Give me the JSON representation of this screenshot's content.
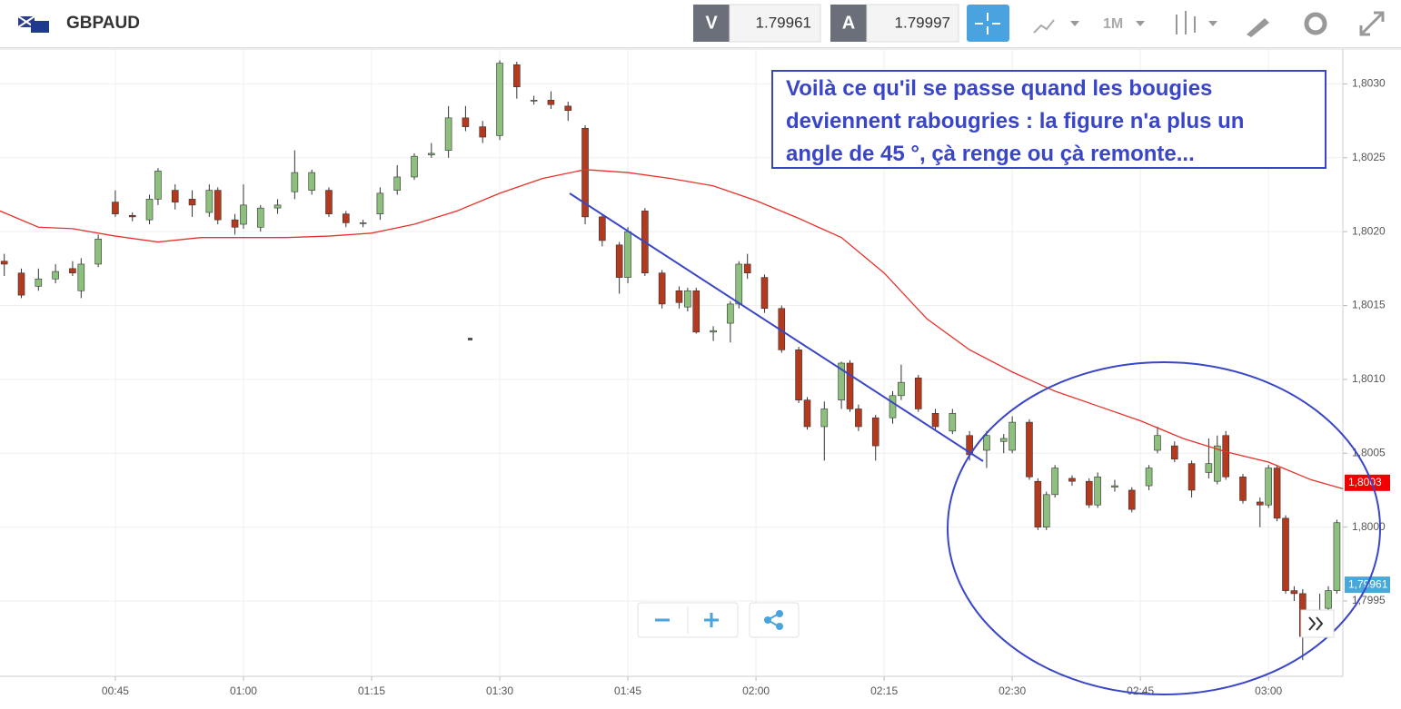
{
  "header": {
    "symbol": "GBPAUD",
    "bid_label": "V",
    "bid": "1.79961",
    "ask_label": "A",
    "ask": "1.79997",
    "timeframe": "1M"
  },
  "annotation": [
    "Voilà ce qu'il se passe quand les bougies",
    "deviennent rabougries : la figure n'a plus un",
    "angle de 45 °, çà renge ou çà remonte..."
  ],
  "chart_data": {
    "type": "candlestick",
    "xlim": [
      31.5,
      188.7
    ],
    "ylim": [
      1.79899,
      1.80323
    ],
    "xticks": [
      {
        "value": 45,
        "label": "00:45"
      },
      {
        "value": 60,
        "label": "01:00"
      },
      {
        "value": 75,
        "label": "01:15"
      },
      {
        "value": 90,
        "label": "01:30"
      },
      {
        "value": 105,
        "label": "01:45"
      },
      {
        "value": 120,
        "label": "02:00"
      },
      {
        "value": 135,
        "label": "02:15"
      },
      {
        "value": 150,
        "label": "02:30"
      },
      {
        "value": 165,
        "label": "02:45"
      },
      {
        "value": 180,
        "label": "03:00"
      }
    ],
    "yticks": [
      {
        "value": 1.7995,
        "label": "1,7995"
      },
      {
        "value": 1.8,
        "label": "1,8000"
      },
      {
        "value": 1.8005,
        "label": "1,8005"
      },
      {
        "value": 1.801,
        "label": "1,8010"
      },
      {
        "value": 1.8015,
        "label": "1,8015"
      },
      {
        "value": 1.802,
        "label": "1,8020"
      },
      {
        "value": 1.8025,
        "label": "1,8025"
      },
      {
        "value": 1.803,
        "label": "1,8030"
      }
    ],
    "grid": true,
    "up_color": "#8cc07c",
    "down_color": "#b33a1f",
    "x": [
      32,
      34,
      36,
      38,
      40,
      41,
      43,
      45,
      47,
      49,
      50,
      52,
      54,
      56,
      57,
      59,
      60,
      62,
      64,
      66,
      68,
      70,
      72,
      74,
      76,
      78,
      80,
      82,
      84,
      86,
      88,
      90,
      92,
      94,
      96,
      98,
      100,
      102,
      104,
      105,
      107,
      109,
      111,
      112,
      113,
      115,
      117,
      118,
      119,
      121,
      123,
      125,
      126,
      128,
      130,
      131,
      132,
      134,
      136,
      137,
      139,
      141,
      143,
      145,
      147,
      149,
      150,
      152,
      153,
      154,
      155,
      157,
      159,
      160,
      162,
      164,
      166,
      167,
      169,
      171,
      173,
      174,
      175,
      177,
      179,
      180,
      181,
      182,
      183,
      184,
      186,
      187,
      188
    ],
    "open": [
      1.8018,
      1.80172,
      1.80163,
      1.80168,
      1.80175,
      1.8016,
      1.80178,
      1.8022,
      1.80211,
      1.80208,
      1.80222,
      1.80228,
      1.80222,
      1.80213,
      1.80228,
      1.80208,
      1.80205,
      1.80203,
      1.80216,
      1.80227,
      1.80228,
      1.80228,
      1.80212,
      1.80206,
      1.80212,
      1.80228,
      1.80237,
      1.80252,
      1.80255,
      1.80277,
      1.80271,
      1.80265,
      1.80313,
      1.80289,
      1.80289,
      1.80285,
      1.8027,
      1.8021,
      1.80191,
      1.80169,
      1.80214,
      1.80172,
      1.8016,
      1.80149,
      1.8016,
      1.80132,
      1.80138,
      1.80151,
      1.80178,
      1.80169,
      1.80148,
      1.8012,
      1.80086,
      1.80068,
      1.80086,
      1.80111,
      1.8008,
      1.80074,
      1.80074,
      1.80089,
      1.80101,
      1.80077,
      1.80065,
      1.80062,
      1.80052,
      1.80058,
      1.80052,
      1.80071,
      1.80031,
      1.8,
      1.80022,
      1.80033,
      1.80031,
      1.80015,
      1.80027,
      1.80025,
      1.80028,
      1.80052,
      1.80055,
      1.80043,
      1.80037,
      1.80031,
      1.80062,
      1.80034,
      1.80017,
      1.80015,
      1.8004,
      1.80006,
      1.79957,
      1.79955,
      1.79939,
      1.79945,
      1.79957
    ],
    "high": [
      1.80185,
      1.80175,
      1.80175,
      1.80178,
      1.8018,
      1.80182,
      1.80198,
      1.80228,
      1.80213,
      1.80225,
      1.80243,
      1.80232,
      1.80228,
      1.80232,
      1.8023,
      1.80212,
      1.80232,
      1.80218,
      1.80222,
      1.80255,
      1.80242,
      1.8023,
      1.80214,
      1.80208,
      1.8023,
      1.80245,
      1.80253,
      1.8026,
      1.80285,
      1.80285,
      1.80275,
      1.80316,
      1.80315,
      1.80292,
      1.80295,
      1.80288,
      1.80272,
      1.80212,
      1.80193,
      1.80203,
      1.80216,
      1.80174,
      1.80163,
      1.80162,
      1.80162,
      1.80136,
      1.80153,
      1.8018,
      1.80185,
      1.80171,
      1.8015,
      1.80122,
      1.80088,
      1.80085,
      1.80112,
      1.80113,
      1.80083,
      1.80076,
      1.80092,
      1.8011,
      1.80103,
      1.8008,
      1.8008,
      1.80065,
      1.80065,
      1.80063,
      1.80075,
      1.80073,
      1.80033,
      1.80024,
      1.80042,
      1.80035,
      1.80033,
      1.80037,
      1.80032,
      1.80027,
      1.80042,
      1.80068,
      1.80058,
      1.80045,
      1.8006,
      1.80062,
      1.80065,
      1.80036,
      1.8002,
      1.80042,
      1.80042,
      1.80008,
      1.7996,
      1.79958,
      1.79955,
      1.7996,
      1.80005
    ],
    "low": [
      1.8017,
      1.80155,
      1.8016,
      1.80165,
      1.8017,
      1.80155,
      1.80176,
      1.8021,
      1.80207,
      1.80205,
      1.80218,
      1.80215,
      1.8021,
      1.8021,
      1.80205,
      1.80198,
      1.80202,
      1.802,
      1.80212,
      1.80222,
      1.80225,
      1.8021,
      1.80203,
      1.80203,
      1.80208,
      1.80225,
      1.80235,
      1.8025,
      1.8025,
      1.80268,
      1.8026,
      1.80262,
      1.8029,
      1.80286,
      1.80283,
      1.80275,
      1.80205,
      1.8019,
      1.80158,
      1.80165,
      1.8017,
      1.80148,
      1.80148,
      1.80146,
      1.80131,
      1.80126,
      1.80125,
      1.80148,
      1.80168,
      1.80145,
      1.80118,
      1.80084,
      1.80066,
      1.80045,
      1.8008,
      1.80078,
      1.80065,
      1.80045,
      1.8007,
      1.80086,
      1.80078,
      1.80065,
      1.80063,
      1.80045,
      1.8004,
      1.8005,
      1.8005,
      1.80032,
      1.79998,
      1.79998,
      1.8002,
      1.80028,
      1.80013,
      1.80013,
      1.80024,
      1.8001,
      1.80025,
      1.8005,
      1.80044,
      1.8002,
      1.80033,
      1.80029,
      1.80032,
      1.80016,
      1.8,
      1.80013,
      1.80004,
      1.79955,
      1.7995,
      1.7991,
      1.79925,
      1.7993,
      1.79955
    ],
    "close": [
      1.80178,
      1.80157,
      1.80168,
      1.80173,
      1.80172,
      1.80178,
      1.80195,
      1.80212,
      1.8021,
      1.80222,
      1.80241,
      1.8022,
      1.80218,
      1.80228,
      1.80208,
      1.80203,
      1.80218,
      1.80216,
      1.80218,
      1.8024,
      1.8024,
      1.80212,
      1.80206,
      1.80206,
      1.80226,
      1.80237,
      1.80251,
      1.80253,
      1.80277,
      1.80271,
      1.80264,
      1.80314,
      1.80298,
      1.80289,
      1.80286,
      1.80282,
      1.8021,
      1.80194,
      1.80169,
      1.802,
      1.80172,
      1.80151,
      1.80152,
      1.8016,
      1.80132,
      1.80133,
      1.80151,
      1.80178,
      1.80172,
      1.80148,
      1.8012,
      1.80086,
      1.80068,
      1.8008,
      1.80111,
      1.8008,
      1.80068,
      1.80055,
      1.80089,
      1.80098,
      1.8008,
      1.80068,
      1.80077,
      1.80049,
      1.80062,
      1.8006,
      1.80071,
      1.80034,
      1.8,
      1.80022,
      1.8004,
      1.80031,
      1.80015,
      1.80034,
      1.80028,
      1.80012,
      1.8004,
      1.80062,
      1.80046,
      1.80025,
      1.80043,
      1.80055,
      1.80034,
      1.80018,
      1.80015,
      1.8004,
      1.80006,
      1.79957,
      1.79955,
      1.79926,
      1.79935,
      1.79957,
      1.80003
    ],
    "moving_average": {
      "color": "#e8312a",
      "x": [
        31.5,
        36,
        40,
        45,
        50,
        55,
        60,
        65,
        70,
        75,
        80,
        85,
        90,
        95,
        100,
        105,
        110,
        115,
        120,
        125,
        130,
        135,
        140,
        145,
        150,
        155,
        160,
        165,
        170,
        175,
        180,
        185,
        188.7
      ],
      "values": [
        1.80214,
        1.80203,
        1.80202,
        1.80197,
        1.80193,
        1.80196,
        1.80196,
        1.80196,
        1.80197,
        1.80199,
        1.80205,
        1.80214,
        1.80226,
        1.80236,
        1.80242,
        1.8024,
        1.80236,
        1.80231,
        1.80221,
        1.80209,
        1.80196,
        1.80172,
        1.80141,
        1.8012,
        1.80105,
        1.80092,
        1.80082,
        1.80072,
        1.8006,
        1.80051,
        1.80044,
        1.80032,
        1.80026
      ]
    },
    "price_tags": [
      {
        "value": 1.8003,
        "label": "1,8003",
        "color": "#f00000"
      },
      {
        "value": 1.79961,
        "label": "1,79961",
        "color": "#4aa8d8"
      }
    ]
  }
}
